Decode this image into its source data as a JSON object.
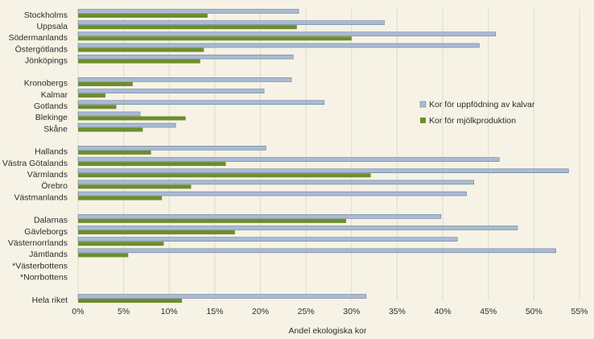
{
  "chart_data": {
    "type": "bar",
    "orientation": "horizontal",
    "title": "",
    "xlabel": "Andel ekologiska kor",
    "ylabel": "",
    "xlim": [
      0,
      55
    ],
    "xticks": [
      0,
      5,
      10,
      15,
      20,
      25,
      30,
      35,
      40,
      45,
      50,
      55
    ],
    "xtick_labels": [
      "0%",
      "5%",
      "10%",
      "15%",
      "20%",
      "25%",
      "30%",
      "35%",
      "40%",
      "45%",
      "50%",
      "55%"
    ],
    "grid": "vertical",
    "legend_position": "right",
    "categories": [
      "Stockholms",
      "Uppsala",
      "Södermanlands",
      "Östergötlands",
      "Jönköpings",
      "",
      "Kronobergs",
      "Kalmar",
      "Gotlands",
      "Blekinge",
      "Skåne",
      "",
      "Hallands",
      "Västra Götalands",
      "Värmlands",
      "Örebro",
      "Västmanlands",
      "",
      "Dalarnas",
      "Gävleborgs",
      "Västernorrlands",
      "Jämtlands",
      "*Västerbottens",
      "*Norrbottens",
      "",
      "Hela riket"
    ],
    "series": [
      {
        "name": "Kor för uppfödning av kalvar",
        "color": "#a9bad3",
        "values": [
          24.2,
          33.6,
          45.8,
          44.0,
          23.6,
          null,
          23.4,
          20.4,
          27.0,
          6.8,
          10.7,
          null,
          20.6,
          46.2,
          53.8,
          43.4,
          42.6,
          null,
          39.8,
          48.2,
          41.6,
          52.4,
          null,
          null,
          null,
          31.6
        ]
      },
      {
        "name": "Kor för mjölkproduktion",
        "color": "#6d8d2d",
        "values": [
          14.2,
          24.0,
          30.0,
          13.8,
          13.4,
          null,
          6.0,
          3.0,
          4.2,
          11.8,
          7.1,
          null,
          8.0,
          16.2,
          32.1,
          12.4,
          9.2,
          null,
          29.4,
          17.2,
          9.4,
          5.5,
          null,
          null,
          null,
          11.4
        ]
      }
    ]
  }
}
